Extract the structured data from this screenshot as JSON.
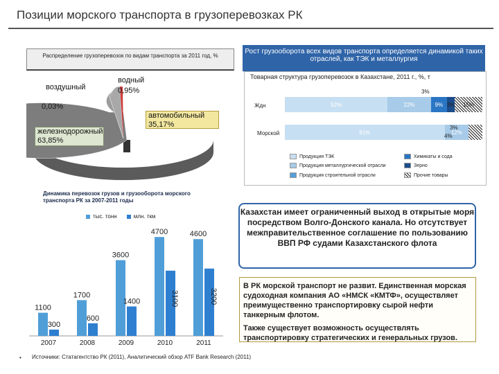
{
  "slide": {
    "title": "Позиции морского транспорта в грузоперевозках РК"
  },
  "pie_chart": {
    "header": "Распределение грузоперевозок по видам транспорта за 2011 год, %",
    "labels": {
      "air": "воздушный",
      "water_name": "водный",
      "water_value": "0,95%",
      "air_value": "0,03%",
      "auto": "автомобильный\n35,17%",
      "rail": "железнодорожный\n63,85%"
    }
  },
  "banner": {
    "text": "Рост грузооборота всех видов транспорта определяется динамикой таких отраслей, как ТЭК и металлургия"
  },
  "structure_chart": {
    "title": "Товарная структура грузоперевозок в Казахстане, 2011 г., %, т",
    "rows": [
      {
        "label": "Ждн",
        "values": [
          "52%",
          "22%",
          "9%",
          "3%",
          "15%"
        ],
        "top_label": "3%"
      },
      {
        "label": "Морской",
        "values": [
          "81%",
          "12%"
        ],
        "right_labels": [
          "3%",
          "4%"
        ]
      }
    ],
    "legend": [
      {
        "label": "Продукция ТЭК",
        "color": "#c7dff2"
      },
      {
        "label": "Химикаты и сода",
        "color": "#2a76c4"
      },
      {
        "label": "Продукция металлургической отрасли",
        "color": "#a7cbe8"
      },
      {
        "label": "Зерно",
        "color": "#1b4c8b"
      },
      {
        "label": "Продукция строительной отрасли",
        "color": "#5a9ed6"
      },
      {
        "label": "Прочие товары",
        "color": "#f0f4f9"
      }
    ]
  },
  "chart_data": {
    "type": "bar",
    "title": "Динамика перевозок грузов и грузооборота морского транспорта РК за 2007-2011 годы",
    "categories": [
      "2007",
      "2008",
      "2009",
      "2010",
      "2011"
    ],
    "series": [
      {
        "name": "тыс. тонн",
        "values": [
          1100,
          1700,
          3600,
          4700,
          4600
        ],
        "color": "#4f9ed8"
      },
      {
        "name": "млн. ткм",
        "values": [
          300,
          600,
          1400,
          3100,
          3200
        ],
        "color": "#2f7fd0"
      }
    ],
    "ylim": [
      0,
      5200
    ]
  },
  "callout": {
    "text": "Казахстан имеет ограниченный выход в открытые моря посредством Волго-Донского канала. Но отсутствует межправительственное соглашение по пользованию ВВП РФ судами Казахстанского флота"
  },
  "text_box": {
    "para1": "В РК морской транспорт не развит. Единственная морская судоходная компания АО «НМСК «КМТФ», осуществляет преимущественно транспортировку сырой нефти танкерным флотом.",
    "para2": "Также существует возможность осуществлять транспортировку стратегических и генеральных грузов."
  },
  "footer": {
    "bullet": "•",
    "source": "Источники: Статагентство РК (2011), Аналитический обзор ATF Bank Research (2011)"
  }
}
